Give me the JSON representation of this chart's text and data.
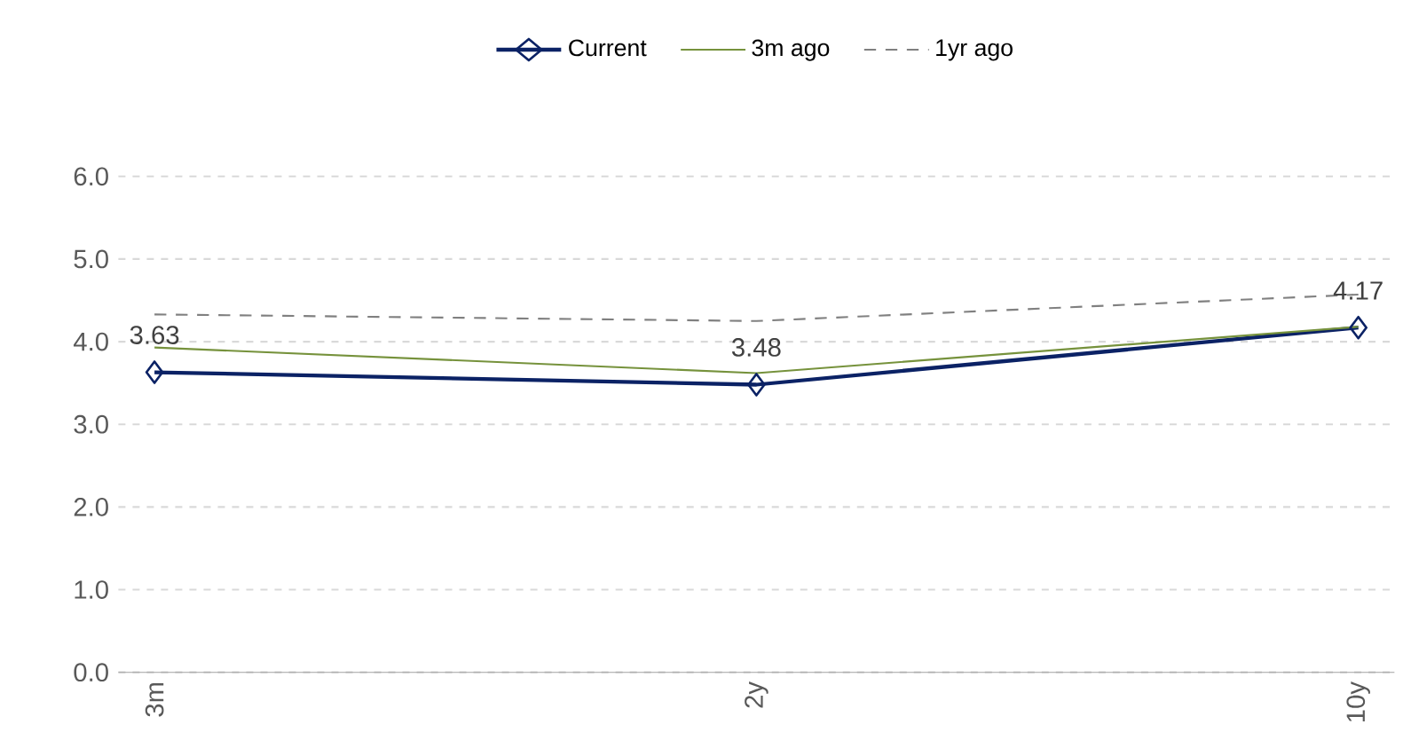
{
  "chart_data": {
    "type": "line",
    "categories": [
      "3m",
      "2y",
      "10y"
    ],
    "ylim": [
      0,
      6
    ],
    "yticks": [
      {
        "value": 0,
        "label": "0.0"
      },
      {
        "value": 1,
        "label": "1.0"
      },
      {
        "value": 2,
        "label": "2.0"
      },
      {
        "value": 3,
        "label": "3.0"
      },
      {
        "value": 4,
        "label": "4.0"
      },
      {
        "value": 5,
        "label": "5.0"
      },
      {
        "value": 6,
        "label": "6.0"
      }
    ],
    "grid": "y",
    "legend": "top",
    "series": [
      {
        "name": "Current",
        "color": "#0b2265",
        "values": [
          3.63,
          3.48,
          4.17
        ],
        "marker": "diamond",
        "line_style": "solid",
        "value_labels": [
          "3.63",
          "3.48",
          "4.17"
        ]
      },
      {
        "name": "3m ago",
        "color": "#76923c",
        "values": [
          3.93,
          3.62,
          4.18
        ],
        "marker": "none",
        "line_style": "solid"
      },
      {
        "name": "1yr ago",
        "color": "#808080",
        "values": [
          4.33,
          4.25,
          4.57
        ],
        "marker": "none",
        "line_style": "dashed"
      }
    ]
  }
}
